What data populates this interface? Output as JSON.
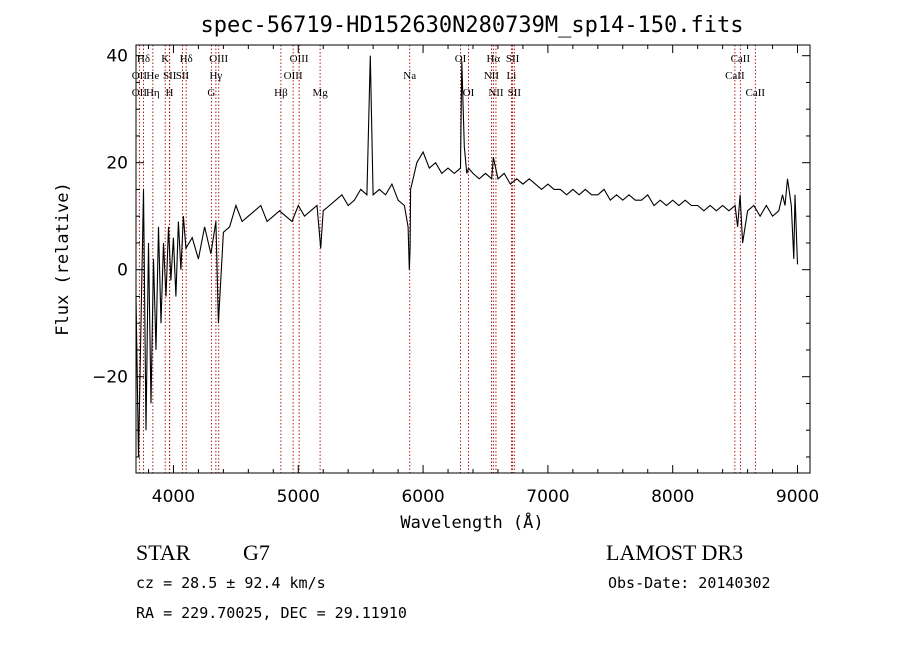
{
  "chart_data": {
    "type": "line",
    "title": "spec-56719-HD152630N280739M_sp14-150.fits",
    "xlabel": "Wavelength (Å)",
    "ylabel": "Flux (relative)",
    "xlim": [
      3700,
      9100
    ],
    "ylim": [
      -38,
      42
    ],
    "xticks": [
      4000,
      5000,
      6000,
      7000,
      8000,
      9000
    ],
    "yticks": [
      -20,
      0,
      20,
      40
    ],
    "series": [
      {
        "x": [
          3700,
          3720,
          3740,
          3760,
          3780,
          3800,
          3820,
          3840,
          3860,
          3880,
          3900,
          3920,
          3940,
          3960,
          3980,
          4000,
          4020,
          4040,
          4060,
          4080,
          4100,
          4150,
          4200,
          4250,
          4300,
          4340,
          4360,
          4400,
          4450,
          4500,
          4550,
          4600,
          4650,
          4700,
          4750,
          4800,
          4850,
          4900,
          4950,
          5000,
          5050,
          5100,
          5150,
          5180,
          5200,
          5250,
          5300,
          5350,
          5400,
          5450,
          5500,
          5550,
          5577,
          5600,
          5650,
          5700,
          5750,
          5800,
          5850,
          5880,
          5890,
          5896,
          5900,
          5920,
          5950,
          6000,
          6050,
          6100,
          6150,
          6200,
          6250,
          6300,
          6310,
          6330,
          6350,
          6364,
          6400,
          6450,
          6500,
          6550,
          6563,
          6600,
          6650,
          6700,
          6750,
          6800,
          6850,
          6900,
          6950,
          7000,
          7050,
          7100,
          7150,
          7200,
          7250,
          7300,
          7350,
          7400,
          7450,
          7500,
          7550,
          7600,
          7650,
          7700,
          7750,
          7800,
          7850,
          7900,
          7950,
          8000,
          8050,
          8100,
          8150,
          8200,
          8250,
          8300,
          8350,
          8400,
          8450,
          8500,
          8520,
          8540,
          8560,
          8600,
          8650,
          8700,
          8750,
          8800,
          8850,
          8880,
          8900,
          8920,
          8950,
          8970,
          8980,
          9000
        ],
        "y": [
          -5,
          -35,
          -10,
          15,
          -30,
          5,
          -25,
          2,
          -15,
          8,
          -10,
          5,
          -5,
          8,
          -2,
          6,
          -5,
          9,
          0,
          10,
          4,
          6,
          2,
          8,
          3,
          9,
          -10,
          7,
          8,
          12,
          9,
          10,
          11,
          12,
          9,
          10,
          11,
          10,
          9,
          12,
          10,
          11,
          12,
          4,
          11,
          12,
          13,
          14,
          12,
          13,
          15,
          14,
          40,
          14,
          15,
          14,
          16,
          13,
          12,
          8,
          0,
          4,
          15,
          17,
          20,
          22,
          19,
          20,
          18,
          19,
          18,
          19,
          39,
          23,
          18,
          19,
          18,
          17,
          18,
          17,
          21,
          17,
          18,
          16,
          17,
          16,
          17,
          16,
          15,
          16,
          15,
          15,
          14,
          15,
          14,
          15,
          14,
          14,
          15,
          13,
          14,
          13,
          14,
          13,
          13,
          14,
          12,
          13,
          12,
          13,
          12,
          13,
          12,
          12,
          11,
          12,
          11,
          12,
          11,
          12,
          8,
          14,
          5,
          11,
          12,
          10,
          12,
          10,
          11,
          14,
          12,
          17,
          12,
          2,
          14,
          1
        ]
      }
    ],
    "line_markers": [
      {
        "label": "Hδ",
        "x": 3760,
        "row": 1
      },
      {
        "label": "OII",
        "x": 3727,
        "row": 2
      },
      {
        "label": "OII",
        "x": 3727,
        "row": 3
      },
      {
        "label": "He",
        "x": 3835,
        "row": 2
      },
      {
        "label": "Hη",
        "x": 3835,
        "row": 3
      },
      {
        "label": "K",
        "x": 3934,
        "row": 1
      },
      {
        "label": "SII",
        "x": 3970,
        "row": 2
      },
      {
        "label": "H",
        "x": 3968,
        "row": 3
      },
      {
        "label": "Hδ",
        "x": 4102,
        "row": 1
      },
      {
        "label": "SII",
        "x": 4072,
        "row": 2
      },
      {
        "label": "OIII",
        "x": 4363,
        "row": 1
      },
      {
        "label": "Hγ",
        "x": 4340,
        "row": 2
      },
      {
        "label": "G",
        "x": 4304,
        "row": 3
      },
      {
        "label": "OIII",
        "x": 5007,
        "row": 1
      },
      {
        "label": "OIII",
        "x": 4959,
        "row": 2
      },
      {
        "label": "Hβ",
        "x": 4861,
        "row": 3
      },
      {
        "label": "Mg",
        "x": 5175,
        "row": 3
      },
      {
        "label": "Na",
        "x": 5893,
        "row": 2
      },
      {
        "label": "OI",
        "x": 6300,
        "row": 1
      },
      {
        "label": "OI",
        "x": 6364,
        "row": 3
      },
      {
        "label": "Hα",
        "x": 6563,
        "row": 1
      },
      {
        "label": "NII",
        "x": 6548,
        "row": 2
      },
      {
        "label": "NII",
        "x": 6584,
        "row": 3
      },
      {
        "label": "SII",
        "x": 6717,
        "row": 1
      },
      {
        "label": "Li",
        "x": 6708,
        "row": 2
      },
      {
        "label": "SII",
        "x": 6731,
        "row": 3
      },
      {
        "label": "CaII",
        "x": 8542,
        "row": 1
      },
      {
        "label": "CaII",
        "x": 8498,
        "row": 2
      },
      {
        "label": "CaII",
        "x": 8662,
        "row": 3
      }
    ]
  },
  "info": {
    "object_class": "STAR",
    "subclass": "G7",
    "survey": "LAMOST DR3",
    "redshift": "cz = 28.5 ± 92.4 km/s",
    "obs_date": "Obs-Date: 20140302",
    "coords": "RA = 229.70025, DEC =  29.11910"
  }
}
